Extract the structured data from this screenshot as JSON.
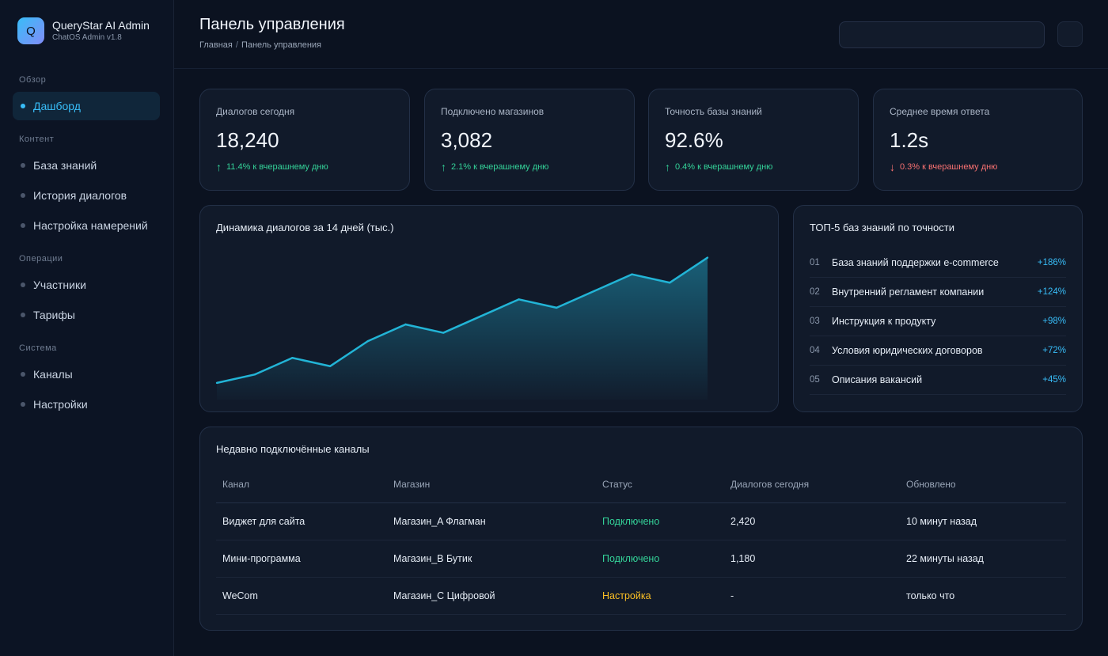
{
  "app": {
    "logo_letter": "Q",
    "title": "QueryStar AI Admin",
    "subtitle": "ChatOS Admin v1.8"
  },
  "sidebar": {
    "sections": [
      {
        "title": "Обзор",
        "items": [
          {
            "label": "Дашборд",
            "active": true
          }
        ]
      },
      {
        "title": "Контент",
        "items": [
          {
            "label": "База знаний"
          },
          {
            "label": "История диалогов"
          },
          {
            "label": "Настройка намерений"
          }
        ]
      },
      {
        "title": "Операции",
        "items": [
          {
            "label": "Участники"
          },
          {
            "label": "Тарифы"
          }
        ]
      },
      {
        "title": "Система",
        "items": [
          {
            "label": "Каналы"
          },
          {
            "label": "Настройки"
          }
        ]
      }
    ]
  },
  "header": {
    "title": "Панель управления",
    "breadcrumb": {
      "home": "Главная",
      "separator": "/",
      "current": "Панель управления"
    },
    "search_value": ""
  },
  "stats": [
    {
      "label": "Диалогов сегодня",
      "value": "18,240",
      "delta": "11.4% к вчерашнему дню",
      "arrow": "↑",
      "trend": "up"
    },
    {
      "label": "Подключено магазинов",
      "value": "3,082",
      "delta": "2.1% к вчерашнему дню",
      "arrow": "↑",
      "trend": "up"
    },
    {
      "label": "Точность базы знаний",
      "value": "92.6%",
      "delta": "0.4% к вчерашнему дню",
      "arrow": "↑",
      "trend": "up"
    },
    {
      "label": "Среднее время ответа",
      "value": "1.2s",
      "delta": "0.3% к вчерашнему дню",
      "arrow": "↓",
      "trend": "down"
    }
  ],
  "chart_panel": {
    "title": "Динамика диалогов за 14 дней (тыс.)"
  },
  "chart_data": {
    "type": "area",
    "title": "Динамика диалогов за 14 дней (тыс.)",
    "x": [
      1,
      2,
      3,
      4,
      5,
      6,
      7,
      8,
      9,
      10,
      11,
      12,
      13,
      14
    ],
    "series": [
      {
        "values": [
          5.0,
          6.0,
          8.0,
          7.0,
          10.0,
          12.0,
          11.0,
          13.0,
          15.0,
          14.0,
          16.0,
          18.0,
          17.0,
          20.0
        ]
      }
    ],
    "ylim": [
      3,
      21
    ],
    "grid": false,
    "color": "#22b4d6"
  },
  "top5": {
    "title": "ТОП-5 баз знаний по точности",
    "items": [
      {
        "rank": "01",
        "name": "База знаний поддержки e-commerce",
        "value": "+186%"
      },
      {
        "rank": "02",
        "name": "Внутренний регламент компании",
        "value": "+124%"
      },
      {
        "rank": "03",
        "name": "Инструкция к продукту",
        "value": "+98%"
      },
      {
        "rank": "04",
        "name": "Условия юридических договоров",
        "value": "+72%"
      },
      {
        "rank": "05",
        "name": "Описания вакансий",
        "value": "+45%"
      }
    ]
  },
  "channels": {
    "title": "Недавно подключённые каналы",
    "columns": [
      "Канал",
      "Магазин",
      "Статус",
      "Диалогов сегодня",
      "Обновлено"
    ],
    "rows": [
      {
        "channel": "Виджет для сайта",
        "store": "Магазин_A Флагман",
        "status": "Подключено",
        "status_kind": "ok",
        "today": "2,420",
        "updated": "10 минут назад"
      },
      {
        "channel": "Мини-программа",
        "store": "Магазин_B Бутик",
        "status": "Подключено",
        "status_kind": "ok",
        "today": "1,180",
        "updated": "22 минуты назад"
      },
      {
        "channel": "WeCom",
        "store": "Магазин_C Цифровой",
        "status": "Настройка",
        "status_kind": "setup",
        "today": "-",
        "updated": "только что"
      }
    ]
  },
  "colors": {
    "accent": "#38bdf8",
    "up": "#34d399",
    "down": "#f87171",
    "setup": "#fbbf24"
  }
}
